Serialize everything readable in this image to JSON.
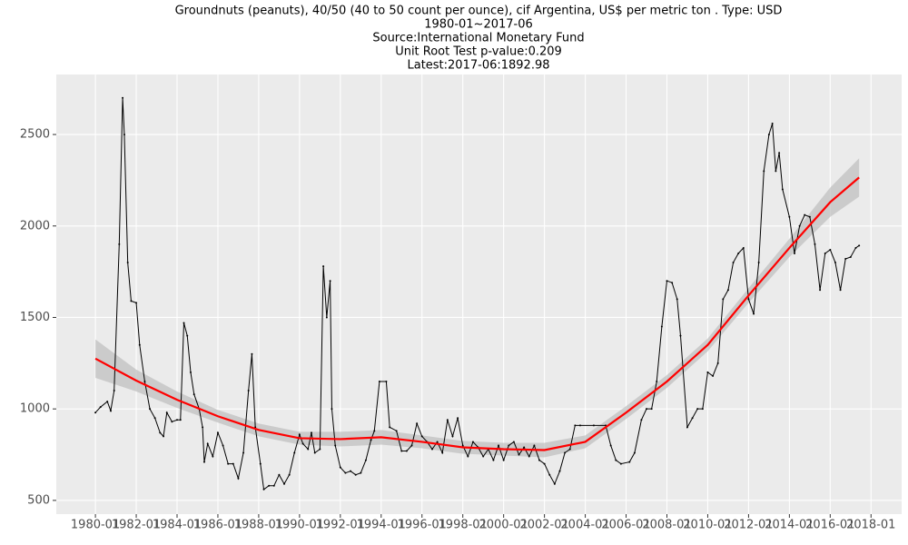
{
  "chart_data": {
    "type": "line",
    "title": "Groundnuts (peanuts), 40/50 (40 to 50 count per ounce), cif Argentina, US$ per metric ton . Type: USD",
    "date_range": "1980-01~2017-06",
    "source": "Source:International Monetary Fund",
    "unit_root_test": "Unit Root Test p-value:0.209",
    "latest": "Latest:2017-06:1892.98",
    "x": [
      "1980-01",
      "1980-04",
      "1980-08",
      "1980-10",
      "1980-12",
      "1981-03",
      "1981-05",
      "1981-06",
      "1981-08",
      "1981-10",
      "1982-01",
      "1982-03",
      "1982-06",
      "1982-09",
      "1982-12",
      "1983-03",
      "1983-05",
      "1983-07",
      "1983-10",
      "1984-01",
      "1984-03",
      "1984-05",
      "1984-07",
      "1984-09",
      "1984-11",
      "1985-02",
      "1985-04",
      "1985-05",
      "1985-07",
      "1985-10",
      "1986-01",
      "1986-04",
      "1986-07",
      "1986-10",
      "1987-01",
      "1987-04",
      "1987-07",
      "1987-09",
      "1987-11",
      "1988-02",
      "1988-04",
      "1988-07",
      "1988-10",
      "1989-01",
      "1989-04",
      "1989-07",
      "1989-10",
      "1990-01",
      "1990-03",
      "1990-06",
      "1990-08",
      "1990-10",
      "1991-01",
      "1991-03",
      "1991-05",
      "1991-07",
      "1991-08",
      "1991-10",
      "1992-01",
      "1992-04",
      "1992-07",
      "1992-10",
      "1993-01",
      "1993-04",
      "1993-07",
      "1993-09",
      "1993-12",
      "1994-04",
      "1994-06",
      "1994-10",
      "1995-01",
      "1995-04",
      "1995-07",
      "1995-10",
      "1996-01",
      "1996-04",
      "1996-07",
      "1996-10",
      "1997-01",
      "1997-04",
      "1997-07",
      "1997-10",
      "1998-01",
      "1998-04",
      "1998-07",
      "1998-10",
      "1999-01",
      "1999-04",
      "1999-07",
      "1999-10",
      "2000-01",
      "2000-04",
      "2000-07",
      "2000-10",
      "2001-01",
      "2001-04",
      "2001-07",
      "2001-10",
      "2002-01",
      "2002-04",
      "2002-07",
      "2002-10",
      "2003-01",
      "2003-04",
      "2003-07",
      "2003-10",
      "2004-06",
      "2005-01",
      "2005-04",
      "2005-07",
      "2005-10",
      "2006-03",
      "2006-06",
      "2006-10",
      "2007-01",
      "2007-04",
      "2007-07",
      "2007-10",
      "2008-01",
      "2008-04",
      "2008-07",
      "2008-09",
      "2009-01",
      "2009-04",
      "2009-07",
      "2009-10",
      "2010-01",
      "2010-04",
      "2010-07",
      "2010-10",
      "2011-01",
      "2011-04",
      "2011-07",
      "2011-10",
      "2012-01",
      "2012-04",
      "2012-07",
      "2012-10",
      "2013-01",
      "2013-03",
      "2013-05",
      "2013-07",
      "2013-09",
      "2014-01",
      "2014-04",
      "2014-07",
      "2014-10",
      "2015-01",
      "2015-04",
      "2015-07",
      "2015-10",
      "2016-01",
      "2016-04",
      "2016-07",
      "2016-10",
      "2017-01",
      "2017-04",
      "2017-06"
    ],
    "values": [
      980,
      1010,
      1040,
      990,
      1100,
      1900,
      2700,
      2500,
      1800,
      1590,
      1580,
      1350,
      1150,
      1000,
      950,
      870,
      850,
      980,
      930,
      940,
      940,
      1470,
      1400,
      1200,
      1080,
      1000,
      900,
      710,
      810,
      740,
      870,
      800,
      700,
      700,
      620,
      760,
      1100,
      1300,
      900,
      700,
      560,
      580,
      580,
      640,
      590,
      640,
      760,
      860,
      810,
      780,
      870,
      760,
      780,
      1780,
      1500,
      1700,
      1000,
      800,
      680,
      650,
      660,
      640,
      650,
      720,
      830,
      880,
      1150,
      1150,
      900,
      880,
      770,
      770,
      800,
      920,
      850,
      820,
      780,
      820,
      760,
      940,
      850,
      950,
      800,
      740,
      820,
      790,
      740,
      780,
      720,
      800,
      720,
      800,
      820,
      750,
      790,
      740,
      800,
      720,
      700,
      640,
      590,
      660,
      760,
      780,
      910,
      910,
      910,
      910,
      800,
      720,
      700,
      710,
      760,
      940,
      1000,
      1000,
      1150,
      1450,
      1700,
      1690,
      1600,
      1400,
      900,
      950,
      1000,
      1000,
      1200,
      1180,
      1250,
      1600,
      1650,
      1800,
      1850,
      1880,
      1600,
      1520,
      1800,
      2300,
      2500,
      2560,
      2300,
      2400,
      2200,
      2050,
      1850,
      2000,
      2060,
      2050,
      1900,
      1650,
      1850,
      1870,
      1800,
      1650,
      1820,
      1830,
      1880,
      1892.98
    ],
    "color": "#000000",
    "smooth_x": [
      "1980-01",
      "1982-01",
      "1984-01",
      "1986-01",
      "1988-01",
      "1990-01",
      "1992-01",
      "1994-01",
      "1996-01",
      "1998-01",
      "2000-01",
      "2002-01",
      "2004-01",
      "2006-01",
      "2008-01",
      "2010-01",
      "2012-01",
      "2014-01",
      "2016-01",
      "2017-06"
    ],
    "smooth_values": [
      1275,
      1155,
      1050,
      960,
      885,
      840,
      835,
      845,
      820,
      790,
      780,
      775,
      820,
      980,
      1150,
      1350,
      1620,
      1880,
      2130,
      2265
    ],
    "smooth_lower": [
      1170,
      1095,
      1005,
      925,
      850,
      805,
      795,
      805,
      785,
      755,
      745,
      735,
      785,
      945,
      1115,
      1315,
      1580,
      1830,
      2050,
      2160
    ],
    "smooth_upper": [
      1380,
      1215,
      1095,
      995,
      920,
      875,
      875,
      885,
      855,
      825,
      815,
      815,
      855,
      1015,
      1185,
      1385,
      1660,
      1930,
      2210,
      2370
    ],
    "smooth_color": "#ff0000",
    "xlim": [
      "1978-02",
      "2019-07"
    ],
    "xticks": [
      "1980-01",
      "1982-01",
      "1984-01",
      "1986-01",
      "1988-01",
      "1990-01",
      "1992-01",
      "1994-01",
      "1996-01",
      "1998-01",
      "2000-01",
      "2002-01",
      "2004-01",
      "2006-01",
      "2008-01",
      "2010-01",
      "2012-01",
      "2014-01",
      "2016-01",
      "2018-01"
    ],
    "ylim": [
      425,
      2828
    ],
    "yticks": [
      500,
      1000,
      1500,
      2000,
      2500
    ],
    "grid": true
  }
}
